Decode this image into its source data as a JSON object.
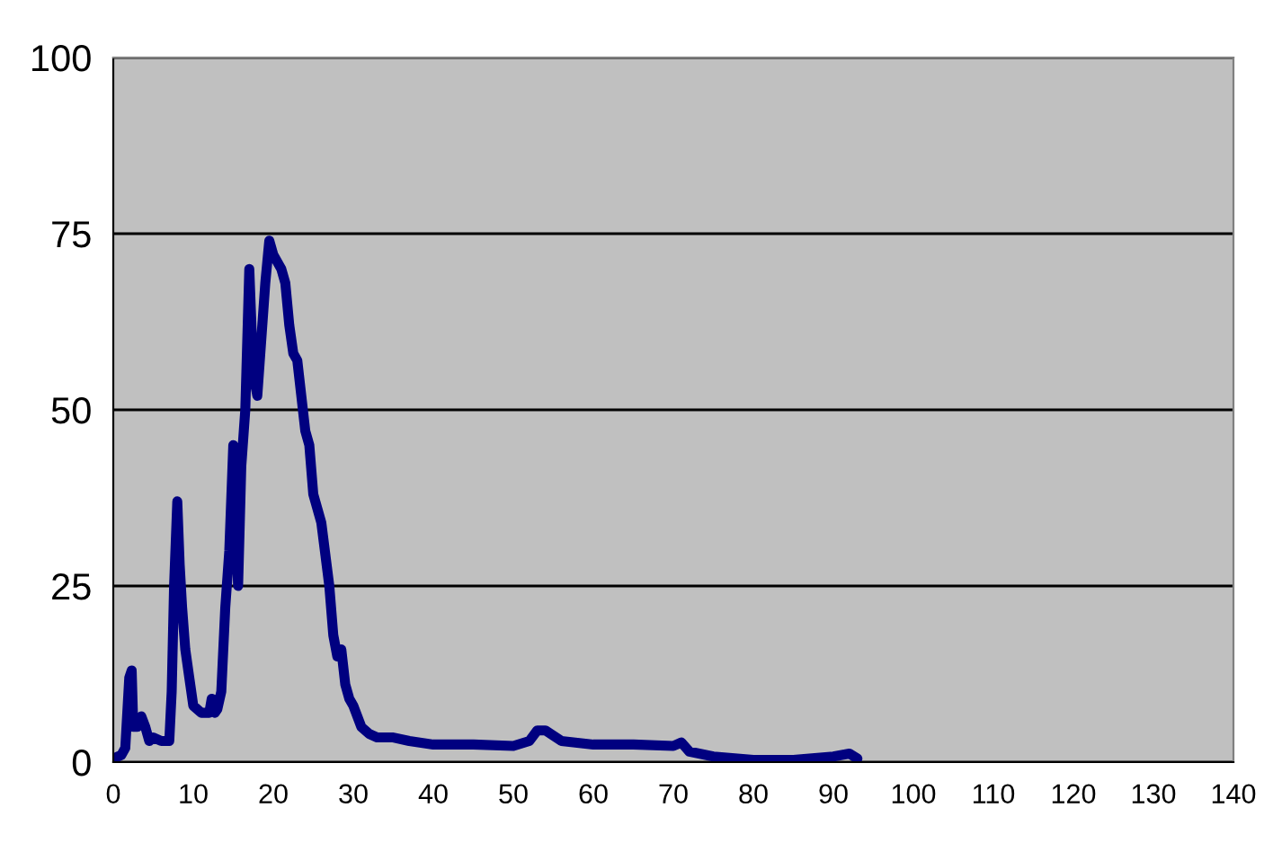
{
  "chart_data": {
    "type": "line",
    "x": [
      0,
      1,
      1.5,
      2,
      2.3,
      2.5,
      3,
      3.5,
      4,
      4.5,
      5,
      6,
      7,
      7.3,
      7.6,
      8,
      8.3,
      8.6,
      9,
      9.5,
      10,
      11,
      12,
      12.3,
      12.7,
      13,
      13.5,
      14,
      14.5,
      15,
      15.3,
      15.6,
      16,
      16.5,
      17,
      17.5,
      18,
      18.5,
      19,
      19.5,
      20,
      21,
      21.5,
      22,
      22.5,
      23,
      24,
      24.5,
      25,
      25.5,
      26,
      27,
      27.5,
      28,
      28.5,
      29,
      29.5,
      30,
      31,
      32,
      33,
      35,
      37,
      40,
      45,
      50,
      52,
      53,
      54,
      56,
      60,
      65,
      70,
      71,
      72,
      75,
      80,
      85,
      90,
      92,
      93
    ],
    "series": [
      {
        "color": "#000080",
        "values": [
          0.5,
          1,
          2,
          12,
          13,
          5,
          5,
          6.5,
          5,
          3,
          3.5,
          3,
          3,
          10,
          25,
          37,
          28,
          22,
          16,
          12,
          8,
          7,
          7,
          9,
          7,
          7.5,
          10,
          22,
          30,
          45,
          35,
          25,
          42,
          50,
          70,
          55,
          52,
          60,
          68,
          74,
          72,
          70,
          68,
          62,
          58,
          57,
          47,
          45,
          38,
          36,
          34,
          25,
          18,
          15,
          16,
          11,
          9,
          8,
          5,
          4,
          3.5,
          3.5,
          3,
          2.5,
          2.5,
          2.3,
          3,
          4.5,
          4.5,
          3,
          2.5,
          2.5,
          2.3,
          2.8,
          1.5,
          0.8,
          0.3,
          0.3,
          0.8,
          1.2,
          0.5
        ]
      }
    ],
    "xlim": [
      0,
      140
    ],
    "xticks": [
      0,
      10,
      20,
      30,
      40,
      50,
      60,
      70,
      80,
      90,
      100,
      110,
      120,
      130,
      140
    ],
    "ylim": [
      0,
      100
    ],
    "yticks": [
      0,
      25,
      50,
      75,
      100
    ],
    "grid": "y",
    "marker": "none",
    "line_style": "solid",
    "legend": false
  }
}
